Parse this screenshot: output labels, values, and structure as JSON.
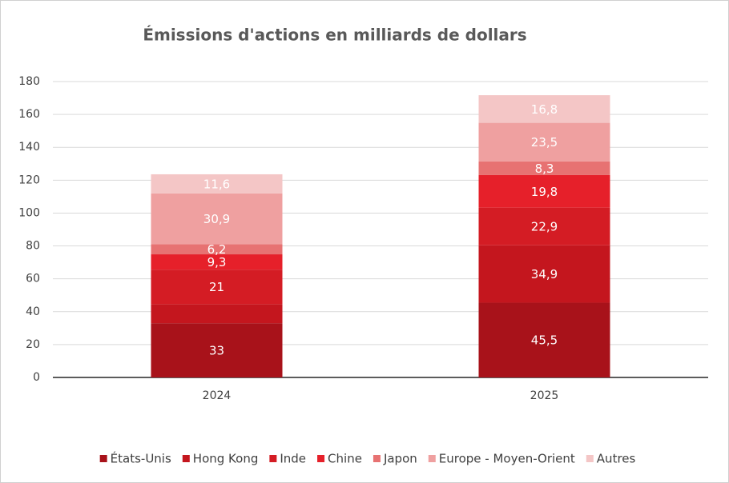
{
  "chart_data": {
    "type": "stacked_bar",
    "title": "Émissions d'actions en milliards de dollars",
    "categories": [
      "2024",
      "2025"
    ],
    "series": [
      {
        "name": "États-Unis",
        "color": "#a8121a",
        "values": [
          33,
          45.5
        ],
        "value_labels": [
          "33",
          "45,5"
        ]
      },
      {
        "name": "Hong Kong",
        "color": "#c4161e",
        "values": [
          11.6,
          34.9
        ],
        "value_labels": [
          null,
          "34,9"
        ]
      },
      {
        "name": "Inde",
        "color": "#d41c24",
        "values": [
          21,
          22.9
        ],
        "value_labels": [
          "21",
          "22,9"
        ]
      },
      {
        "name": "Chine",
        "color": "#e6202a",
        "values": [
          9.3,
          19.8
        ],
        "value_labels": [
          "9,3",
          "19,8"
        ]
      },
      {
        "name": "Japon",
        "color": "#e77272",
        "values": [
          6.2,
          8.3
        ],
        "value_labels": [
          "6,2",
          "8,3"
        ]
      },
      {
        "name": "Europe - Moyen-Orient",
        "color": "#efa0a0",
        "values": [
          30.9,
          23.5
        ],
        "value_labels": [
          "30,9",
          "23,5"
        ]
      },
      {
        "name": "Autres",
        "color": "#f4c6c6",
        "values": [
          11.6,
          16.8
        ],
        "value_labels": [
          "11,6",
          "16,8"
        ]
      }
    ],
    "ylim": [
      0,
      180
    ],
    "yticks": [
      0,
      20,
      40,
      60,
      80,
      100,
      120,
      140,
      160,
      180
    ],
    "grid": true,
    "legend": "bottom"
  }
}
